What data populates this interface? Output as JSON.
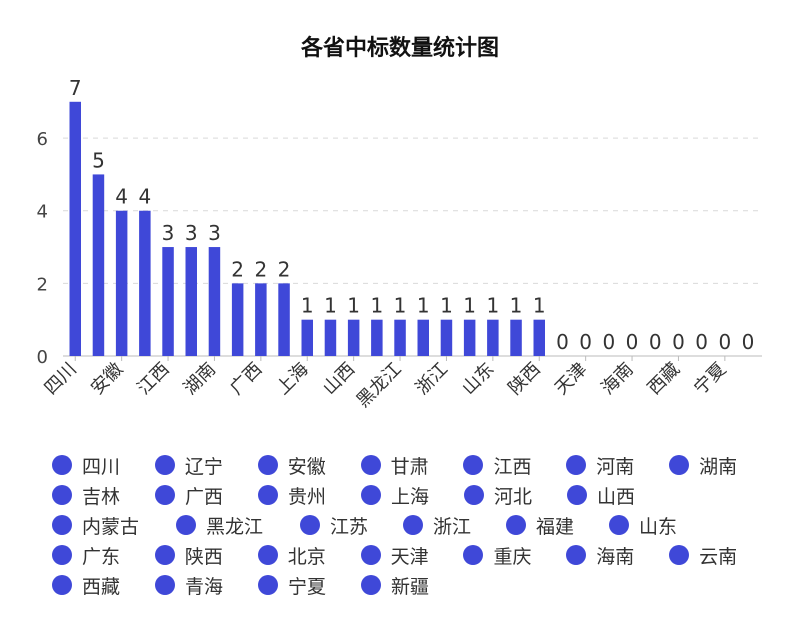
{
  "chart_data": {
    "type": "bar",
    "title": "各省中标数量统计图",
    "categories": [
      "四川",
      "辽宁",
      "安徽",
      "甘肃",
      "江西",
      "河南",
      "湖南",
      "吉林",
      "广西",
      "贵州",
      "上海",
      "河北",
      "山西",
      "内蒙古",
      "黑龙江",
      "江苏",
      "浙江",
      "福建",
      "山东",
      "广东",
      "陕西",
      "北京",
      "天津",
      "重庆",
      "海南",
      "云南",
      "西藏",
      "青海",
      "宁夏",
      "新疆"
    ],
    "values": [
      7,
      5,
      4,
      4,
      3,
      3,
      3,
      2,
      2,
      2,
      1,
      1,
      1,
      1,
      1,
      1,
      1,
      1,
      1,
      1,
      1,
      0,
      0,
      0,
      0,
      0,
      0,
      0,
      0,
      0
    ],
    "x_tick_labels": [
      "四川",
      "安徽",
      "江西",
      "湖南",
      "广西",
      "上海",
      "山西",
      "黑龙江",
      "浙江",
      "山东",
      "陕西",
      "天津",
      "海南",
      "西藏",
      "宁夏"
    ],
    "y_ticks": [
      0,
      2,
      4,
      6
    ],
    "ylim": [
      0,
      7.6
    ],
    "xlabel": "",
    "ylabel": "",
    "bar_color": "#3f48d8",
    "grid": "horizontal dashed",
    "legend_position": "bottom",
    "legend": [
      "四川",
      "辽宁",
      "安徽",
      "甘肃",
      "江西",
      "河南",
      "湖南",
      "吉林",
      "广西",
      "贵州",
      "上海",
      "河北",
      "山西",
      "内蒙古",
      "黑龙江",
      "江苏",
      "浙江",
      "福建",
      "山东",
      "广东",
      "陕西",
      "北京",
      "天津",
      "重庆",
      "海南",
      "云南",
      "西藏",
      "青海",
      "宁夏",
      "新疆"
    ]
  }
}
